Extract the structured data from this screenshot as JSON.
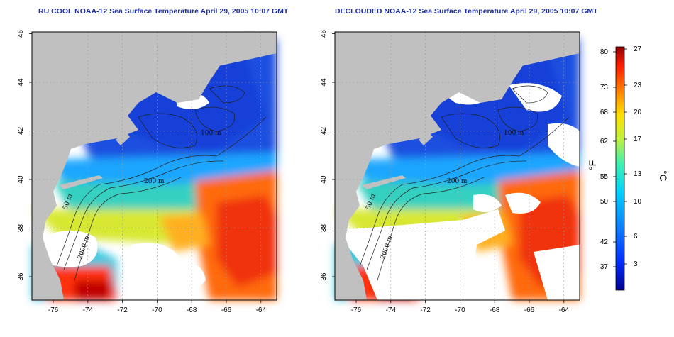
{
  "panels": [
    {
      "title": "RU COOL NOAA-12 Sea Surface Temperature April 29, 2005 10:07 GMT"
    },
    {
      "title": "DECLOUDED NOAA-12 Sea Surface Temperature April 29, 2005 10:07 GMT"
    }
  ],
  "axes": {
    "lat_ticks": [
      "36",
      "38",
      "40",
      "42",
      "44",
      "46"
    ],
    "lon_ticks": [
      "-76",
      "-74",
      "-72",
      "-70",
      "-68",
      "-66",
      "-64"
    ]
  },
  "isobaths": [
    "50 m",
    "100 m",
    "200 m",
    "2000 m"
  ],
  "colorbar": {
    "fahrenheit_ticks": [
      "80",
      "73",
      "68",
      "62",
      "55",
      "50",
      "42",
      "37"
    ],
    "celsius_ticks": [
      "27",
      "23",
      "20",
      "17",
      "13",
      "10",
      "6",
      "3"
    ],
    "fahrenheit_unit": "°F",
    "celsius_unit": "°C"
  },
  "colors": {
    "land": "#c0c0c0",
    "cloud": "#ffffff",
    "title": "#1f2fa0"
  }
}
